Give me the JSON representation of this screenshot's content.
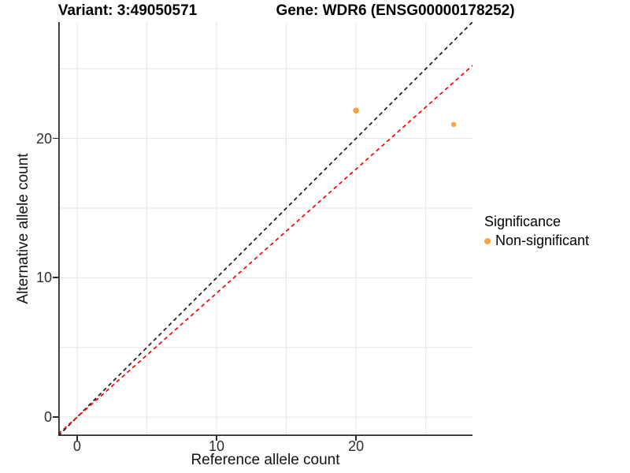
{
  "titles": {
    "variant": "Variant: 3:49050571",
    "gene": "Gene: WDR6 (ENSG00000178252)"
  },
  "legend": {
    "title": "Significance",
    "items": [
      {
        "label": "Non-significant",
        "color": "#F8A33B"
      }
    ]
  },
  "colors": {
    "grid": "#e5e5e5",
    "axis_line": "#2a2a2a",
    "identity_line": "#1a1a1a",
    "fit_line": "#fe0000",
    "point": "#F8A33B"
  },
  "chart_data": {
    "type": "scatter",
    "title": "Variant: 3:49050571 / Gene: WDR6 (ENSG00000178252)",
    "xlabel": "Reference allele count",
    "ylabel": "Alternative allele count",
    "xlim": [
      -1.35,
      28.35
    ],
    "ylim": [
      -1.35,
      28.35
    ],
    "x_major_ticks": [
      0,
      10,
      20
    ],
    "y_major_ticks": [
      0,
      10,
      20
    ],
    "x_minor_gridlines": [
      5,
      15,
      25
    ],
    "y_minor_gridlines": [
      5,
      15,
      25
    ],
    "grid": true,
    "legend_position": "right",
    "series": [
      {
        "name": "Non-significant",
        "color": "#F8A33B",
        "points": [
          {
            "x": 20,
            "y": 22,
            "radius": 3.8
          },
          {
            "x": 27,
            "y": 21,
            "radius": 3.2
          }
        ]
      }
    ],
    "reference_lines": [
      {
        "name": "identity-line",
        "slope": 1,
        "intercept": 0,
        "color": "#1a1a1a",
        "style": "dashed"
      },
      {
        "name": "expected-ratio-line",
        "slope": 0.89,
        "intercept": 0,
        "color": "#fe0000",
        "style": "dashed"
      }
    ]
  }
}
